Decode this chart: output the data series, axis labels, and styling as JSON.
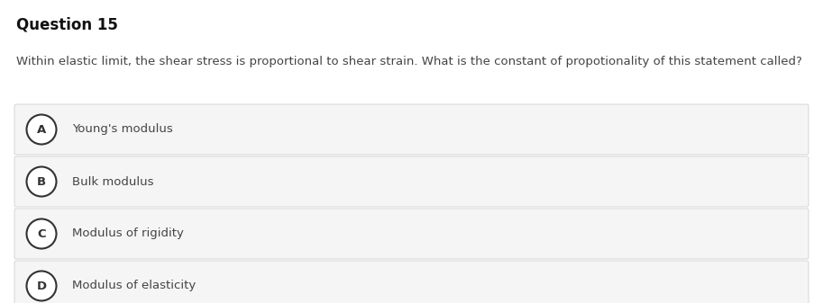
{
  "title": "Question 15",
  "question": "Within elastic limit, the shear stress is proportional to shear strain. What is the constant of propotionality of this statement called?",
  "options": [
    {
      "label": "A",
      "text": "Young's modulus"
    },
    {
      "label": "B",
      "text": "Bulk modulus"
    },
    {
      "label": "C",
      "text": "Modulus of rigidity"
    },
    {
      "label": "D",
      "text": "Modulus of elasticity"
    }
  ],
  "bg_color": "#ffffff",
  "option_bg_color": "#f5f5f5",
  "option_border_color": "#d0d0d0",
  "title_color": "#111111",
  "question_color": "#444444",
  "option_text_color": "#444444",
  "circle_edge_color": "#333333",
  "circle_face_color": "#ffffff",
  "title_fontsize": 12,
  "question_fontsize": 9.5,
  "option_fontsize": 9.5,
  "label_fontsize": 9.5,
  "fig_width": 9.13,
  "fig_height": 3.37,
  "dpi": 100
}
